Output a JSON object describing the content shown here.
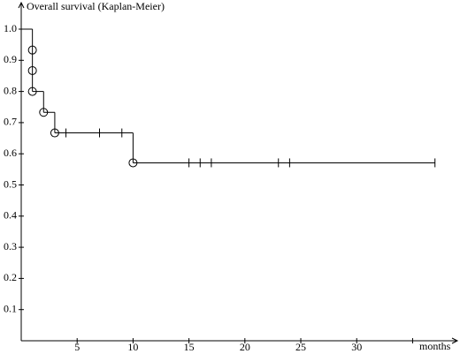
{
  "chart_data": {
    "type": "kaplan-meier",
    "y_label": "Overall survival (Kaplan-Meier)",
    "x_label": "months",
    "color": "#000000",
    "xlim": [
      0,
      39
    ],
    "ylim": [
      0,
      1.085
    ],
    "xticks": [
      5,
      10,
      15,
      20,
      25,
      30,
      {
        "value": 35,
        "label": null
      }
    ],
    "yticks": [
      0.1,
      0.2,
      0.3,
      0.4,
      0.5,
      0.6,
      0.7,
      0.8,
      0.9,
      {
        "value": 1,
        "label": "1.0"
      }
    ],
    "curve": {
      "x": [
        0,
        1,
        2,
        3,
        10,
        37
      ],
      "values": [
        1,
        0.8,
        0.733,
        0.667,
        0.571,
        0.571
      ]
    },
    "events": {
      "x": [
        1,
        1,
        1,
        2,
        3,
        10
      ],
      "values": [
        0.933,
        0.867,
        0.8,
        0.733,
        0.667,
        0.571
      ]
    },
    "censored": {
      "x": [
        4,
        7,
        9,
        15,
        16,
        17,
        23,
        24,
        37
      ],
      "values": [
        0.667,
        0.667,
        0.667,
        0.571,
        0.571,
        0.571,
        0.571,
        0.571,
        0.571
      ]
    }
  }
}
